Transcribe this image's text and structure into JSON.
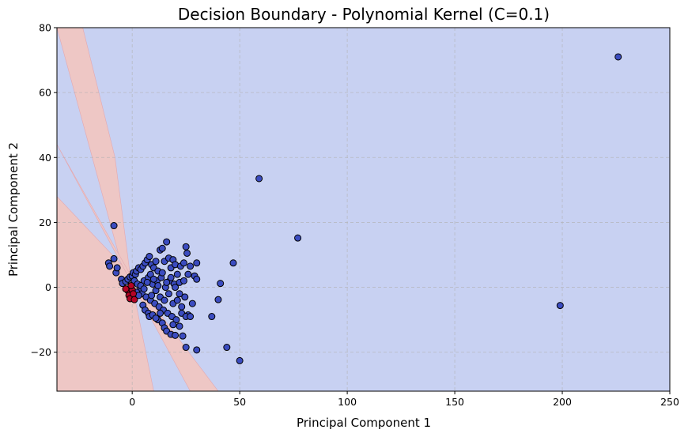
{
  "chart_data": {
    "type": "scatter",
    "title": "Decision Boundary - Polynomial Kernel (C=0.1)",
    "xlabel": "Principal Component 1",
    "ylabel": "Principal Component 2",
    "xlim": [
      -35,
      250
    ],
    "ylim": [
      -32,
      80
    ],
    "xticks": [
      0,
      50,
      100,
      150,
      200,
      250
    ],
    "yticks": [
      -20,
      0,
      20,
      40,
      60,
      80
    ],
    "xtick_labels": [
      "0",
      "50",
      "100",
      "150",
      "200",
      "250"
    ],
    "ytick_labels": [
      "−20",
      "0",
      "20",
      "40",
      "60",
      "80"
    ],
    "grid": true,
    "colors": {
      "region_class_0": "#c8d1f2",
      "region_class_1": "#eec7c5",
      "points_class_0": "#3b4cc0",
      "points_class_1": "#b40426",
      "point_edge": "#000000",
      "grid": "#b0b0b0"
    },
    "decision_regions_class_1": [
      [
        [
          -35,
          80
        ],
        [
          -23,
          80
        ],
        [
          -8,
          40
        ],
        [
          -1,
          4
        ],
        [
          10,
          -32
        ],
        [
          -35,
          -32
        ],
        [
          -35,
          28
        ],
        [
          -5,
          7
        ]
      ],
      [
        [
          -35,
          44
        ],
        [
          -1,
          4
        ],
        [
          40,
          -32
        ],
        [
          27,
          -32
        ]
      ]
    ],
    "series": [
      {
        "class": 0,
        "points": [
          [
            226,
            71
          ],
          [
            59,
            33.5
          ],
          [
            77,
            15.2
          ],
          [
            199,
            -5.6
          ],
          [
            50,
            -22.6
          ],
          [
            44,
            -18.5
          ],
          [
            47,
            7.5
          ],
          [
            -8.5,
            19
          ],
          [
            -11,
            7.5
          ],
          [
            -10.5,
            6.5
          ],
          [
            -8.5,
            8.8
          ],
          [
            -7.5,
            4.5
          ],
          [
            -7,
            6
          ],
          [
            -5,
            2.5
          ],
          [
            -4.5,
            1.2
          ],
          [
            -3,
            1.8
          ],
          [
            -2,
            2.5
          ],
          [
            -1,
            3.2
          ],
          [
            0,
            3.5
          ],
          [
            0.5,
            4.5
          ],
          [
            1,
            2
          ],
          [
            1.5,
            4
          ],
          [
            2,
            5
          ],
          [
            2.5,
            1
          ],
          [
            3,
            6
          ],
          [
            3.5,
            -1
          ],
          [
            4,
            5.5
          ],
          [
            4.5,
            -2
          ],
          [
            5,
            6.5
          ],
          [
            5.5,
            2
          ],
          [
            6,
            7.5
          ],
          [
            6.5,
            -3
          ],
          [
            7,
            8.5
          ],
          [
            7.5,
            3
          ],
          [
            8,
            9.5
          ],
          [
            8.5,
            -4
          ],
          [
            9,
            7
          ],
          [
            9.5,
            1
          ],
          [
            10,
            6
          ],
          [
            10.5,
            -5
          ],
          [
            11,
            8
          ],
          [
            11.5,
            2
          ],
          [
            12,
            5
          ],
          [
            12.5,
            -6
          ],
          [
            13,
            11.5
          ],
          [
            13.5,
            3
          ],
          [
            14,
            12
          ],
          [
            14.5,
            -7
          ],
          [
            15,
            8
          ],
          [
            15.5,
            0
          ],
          [
            16,
            14
          ],
          [
            16.5,
            -8
          ],
          [
            17,
            9
          ],
          [
            17.5,
            2
          ],
          [
            18,
            6
          ],
          [
            18.5,
            -9
          ],
          [
            19,
            8.5
          ],
          [
            19.5,
            1
          ],
          [
            20,
            7
          ],
          [
            20.5,
            -10
          ],
          [
            21,
            4
          ],
          [
            22,
            -2
          ],
          [
            22.5,
            6.5
          ],
          [
            23,
            -6
          ],
          [
            24,
            7.5
          ],
          [
            24.5,
            -3
          ],
          [
            25,
            12.5
          ],
          [
            25.5,
            10.5
          ],
          [
            26,
            -8.5
          ],
          [
            27,
            6.5
          ],
          [
            28,
            -5
          ],
          [
            29,
            3.5
          ],
          [
            30,
            7.5
          ],
          [
            30,
            2.5
          ],
          [
            37,
            -9
          ],
          [
            40,
            -3.8
          ],
          [
            41,
            1.2
          ],
          [
            22,
            -12
          ],
          [
            23.5,
            -15
          ],
          [
            25,
            -18.5
          ],
          [
            30,
            -19.3
          ],
          [
            12,
            -10
          ],
          [
            14,
            -11
          ],
          [
            15,
            -12.5
          ],
          [
            16,
            -13.5
          ],
          [
            18,
            -14.5
          ],
          [
            19,
            -11.5
          ],
          [
            20,
            -14.8
          ],
          [
            5,
            -5.5
          ],
          [
            6,
            -7
          ],
          [
            7.5,
            -8
          ],
          [
            8,
            -9
          ],
          [
            9.5,
            -8.5
          ],
          [
            11,
            -9.5
          ],
          [
            13,
            -8
          ],
          [
            2,
            -1.5
          ],
          [
            3,
            -2.5
          ],
          [
            4,
            0.5
          ],
          [
            5.5,
            -0.5
          ],
          [
            7,
            1.5
          ],
          [
            8.5,
            4
          ],
          [
            9,
            -2.5
          ],
          [
            10,
            2.5
          ],
          [
            11,
            -1
          ],
          [
            12,
            0.5
          ],
          [
            13,
            -3
          ],
          [
            14,
            4.5
          ],
          [
            15,
            -4
          ],
          [
            16,
            1.5
          ],
          [
            17,
            -2
          ],
          [
            18,
            3
          ],
          [
            19,
            -5
          ],
          [
            20,
            0
          ],
          [
            21,
            -4
          ],
          [
            22,
            1.5
          ],
          [
            23,
            -8
          ],
          [
            24,
            2
          ],
          [
            25,
            -9
          ],
          [
            26,
            4
          ],
          [
            27,
            -9
          ]
        ]
      },
      {
        "class": 1,
        "points": [
          [
            -2,
            -1
          ],
          [
            -1.5,
            -2.5
          ],
          [
            -1,
            -3.5
          ],
          [
            0,
            -0.8
          ],
          [
            0.5,
            -2
          ],
          [
            1,
            -3.8
          ],
          [
            -0.5,
            0.5
          ],
          [
            -3,
            -0.5
          ]
        ]
      }
    ]
  }
}
